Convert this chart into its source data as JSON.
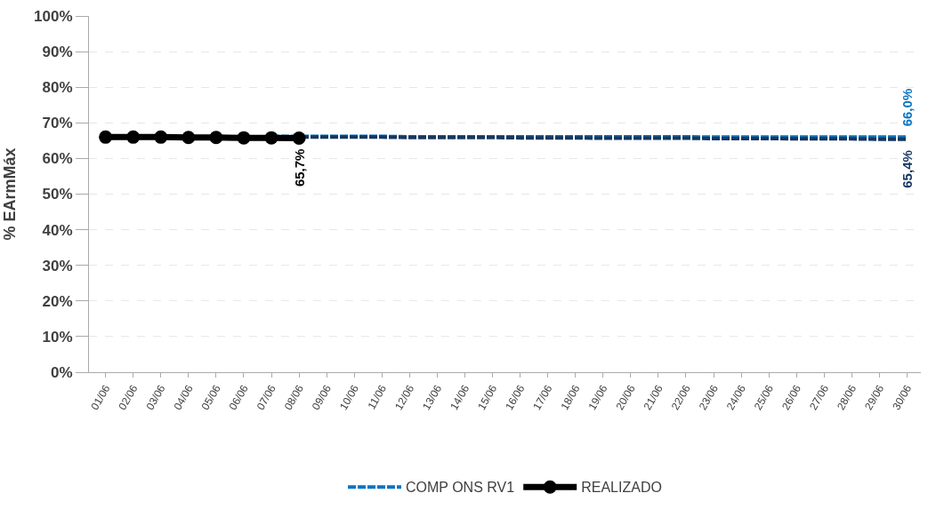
{
  "chart_data": {
    "type": "line",
    "ylabel": "% EArmMáx",
    "categories": [
      "01/06",
      "02/06",
      "03/06",
      "04/06",
      "05/06",
      "06/06",
      "07/06",
      "08/06",
      "09/06",
      "10/06",
      "11/06",
      "12/06",
      "13/06",
      "14/06",
      "15/06",
      "16/06",
      "17/06",
      "18/06",
      "19/06",
      "20/06",
      "21/06",
      "22/06",
      "23/06",
      "24/06",
      "25/06",
      "26/06",
      "27/06",
      "28/06",
      "29/06",
      "30/06"
    ],
    "series": [
      {
        "name": "COMP ONS RV1",
        "color": "#0a75c2",
        "line_style": "dashed",
        "marker": "none",
        "values": [
          null,
          null,
          null,
          null,
          null,
          null,
          66.2,
          66.2,
          66.2,
          66.2,
          66.2,
          66.1,
          66.1,
          66.1,
          66.1,
          66.1,
          66.1,
          66.1,
          66.1,
          66.1,
          66.1,
          66.1,
          66.0,
          66.0,
          66.0,
          66.0,
          66.0,
          66.0,
          66.0,
          66.0
        ],
        "value_labels": [
          null,
          null,
          null,
          null,
          null,
          null,
          null,
          null,
          null,
          null,
          null,
          null,
          null,
          null,
          null,
          null,
          null,
          null,
          null,
          null,
          null,
          null,
          null,
          null,
          null,
          null,
          null,
          null,
          null,
          "66,0%"
        ]
      },
      {
        "color": "#16375f",
        "line_style": "dashed",
        "marker": "none",
        "values": [
          null,
          null,
          null,
          null,
          null,
          null,
          66.0,
          66.0,
          66.0,
          66.0,
          66.0,
          65.9,
          65.9,
          65.9,
          65.9,
          65.8,
          65.8,
          65.8,
          65.7,
          65.7,
          65.7,
          65.7,
          65.6,
          65.6,
          65.6,
          65.5,
          65.5,
          65.5,
          65.4,
          65.4
        ],
        "value_labels": [
          null,
          null,
          null,
          null,
          null,
          null,
          null,
          null,
          null,
          null,
          null,
          null,
          null,
          null,
          null,
          null,
          null,
          null,
          null,
          null,
          null,
          null,
          null,
          null,
          null,
          null,
          null,
          null,
          null,
          "65,4%"
        ]
      },
      {
        "name": "REALIZADO",
        "color": "#000000",
        "line_style": "solid",
        "marker": "circle",
        "values": [
          66.0,
          66.0,
          66.0,
          65.9,
          65.9,
          65.8,
          65.8,
          65.7,
          null,
          null,
          null,
          null,
          null,
          null,
          null,
          null,
          null,
          null,
          null,
          null,
          null,
          null,
          null,
          null,
          null,
          null,
          null,
          null,
          null,
          null
        ],
        "value_labels": [
          null,
          null,
          null,
          null,
          null,
          null,
          null,
          "65,7%",
          null,
          null,
          null,
          null,
          null,
          null,
          null,
          null,
          null,
          null,
          null,
          null,
          null,
          null,
          null,
          null,
          null,
          null,
          null,
          null,
          null,
          null
        ]
      }
    ],
    "ylim": [
      0,
      100
    ],
    "yticks": [
      {
        "value": 0,
        "label": "0%"
      },
      {
        "value": 10,
        "label": "10%"
      },
      {
        "value": 20,
        "label": "20%"
      },
      {
        "value": 30,
        "label": "30%"
      },
      {
        "value": 40,
        "label": "40%"
      },
      {
        "value": 50,
        "label": "50%"
      },
      {
        "value": 60,
        "label": "60%"
      },
      {
        "value": 70,
        "label": "70%"
      },
      {
        "value": 80,
        "label": "80%"
      },
      {
        "value": 90,
        "label": "90%"
      },
      {
        "value": 100,
        "label": "100%"
      }
    ],
    "grid": "y",
    "legend": "bottom"
  }
}
